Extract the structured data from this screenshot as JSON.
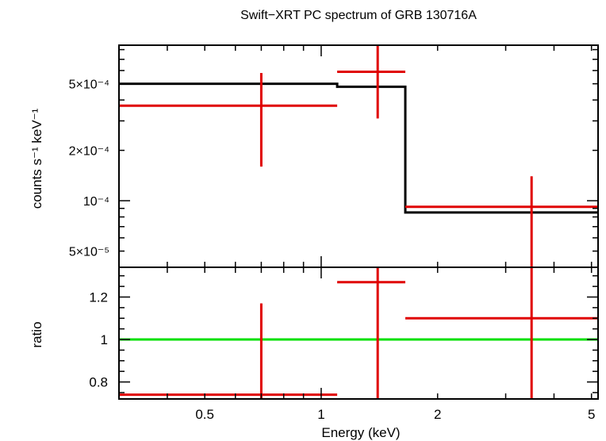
{
  "chart_data": {
    "type": "step",
    "title": "Swift−XRT PC spectrum of GRB 130716A",
    "xlabel": "Energy (keV)",
    "xscale": "log",
    "xlim": [
      0.3,
      5.2
    ],
    "x_ticks": [
      {
        "value": 0.5,
        "label": "0.5"
      },
      {
        "value": 1,
        "label": "1"
      },
      {
        "value": 2,
        "label": "2"
      },
      {
        "value": 5,
        "label": "5"
      }
    ],
    "top_panel": {
      "ylabel": "counts s⁻¹ keV⁻¹",
      "yscale": "log",
      "ylim": [
        4e-05,
        0.00085
      ],
      "y_ticks": [
        {
          "value": 5e-05,
          "label": "5×10⁻⁵"
        },
        {
          "value": 0.0001,
          "label": "10⁻⁴"
        },
        {
          "value": 0.0002,
          "label": "2×10⁻⁴"
        },
        {
          "value": 0.0005,
          "label": "5×10⁻⁴"
        }
      ],
      "data": [
        {
          "xlo": 0.3,
          "xhi": 1.1,
          "x": 0.7,
          "y": 0.00037,
          "ylo": 0.00016,
          "yhi": 0.00058
        },
        {
          "xlo": 1.1,
          "xhi": 1.65,
          "x": 1.4,
          "y": 0.00059,
          "ylo": 0.00031,
          "yhi": 0.00085
        },
        {
          "xlo": 1.65,
          "xhi": 5.2,
          "x": 3.5,
          "y": 9.2e-05,
          "ylo": 4e-05,
          "yhi": 0.00014
        }
      ],
      "model": [
        {
          "xlo": 0.3,
          "xhi": 1.1,
          "y": 0.0005
        },
        {
          "xlo": 1.1,
          "xhi": 1.65,
          "y": 0.00048
        },
        {
          "xlo": 1.65,
          "xhi": 5.2,
          "y": 8.5e-05
        }
      ]
    },
    "bottom_panel": {
      "ylabel": "ratio",
      "ylim": [
        0.72,
        1.34
      ],
      "reference": 1,
      "y_ticks": [
        {
          "value": 0.8,
          "label": "0.8"
        },
        {
          "value": 1,
          "label": "1"
        },
        {
          "value": 1.2,
          "label": "1.2"
        }
      ],
      "data": [
        {
          "xlo": 0.3,
          "xhi": 1.1,
          "x": 0.7,
          "y": 0.74,
          "ylo": 0.72,
          "yhi": 1.17
        },
        {
          "xlo": 1.1,
          "xhi": 1.65,
          "x": 1.4,
          "y": 1.27,
          "ylo": 0.72,
          "yhi": 1.34
        },
        {
          "xlo": 1.65,
          "xhi": 5.2,
          "x": 3.5,
          "y": 1.1,
          "ylo": 0.72,
          "yhi": 1.34
        }
      ]
    },
    "colors": {
      "data": "#e00000",
      "model": "#000000",
      "reference": "#00e000",
      "axes": "#000000"
    }
  }
}
